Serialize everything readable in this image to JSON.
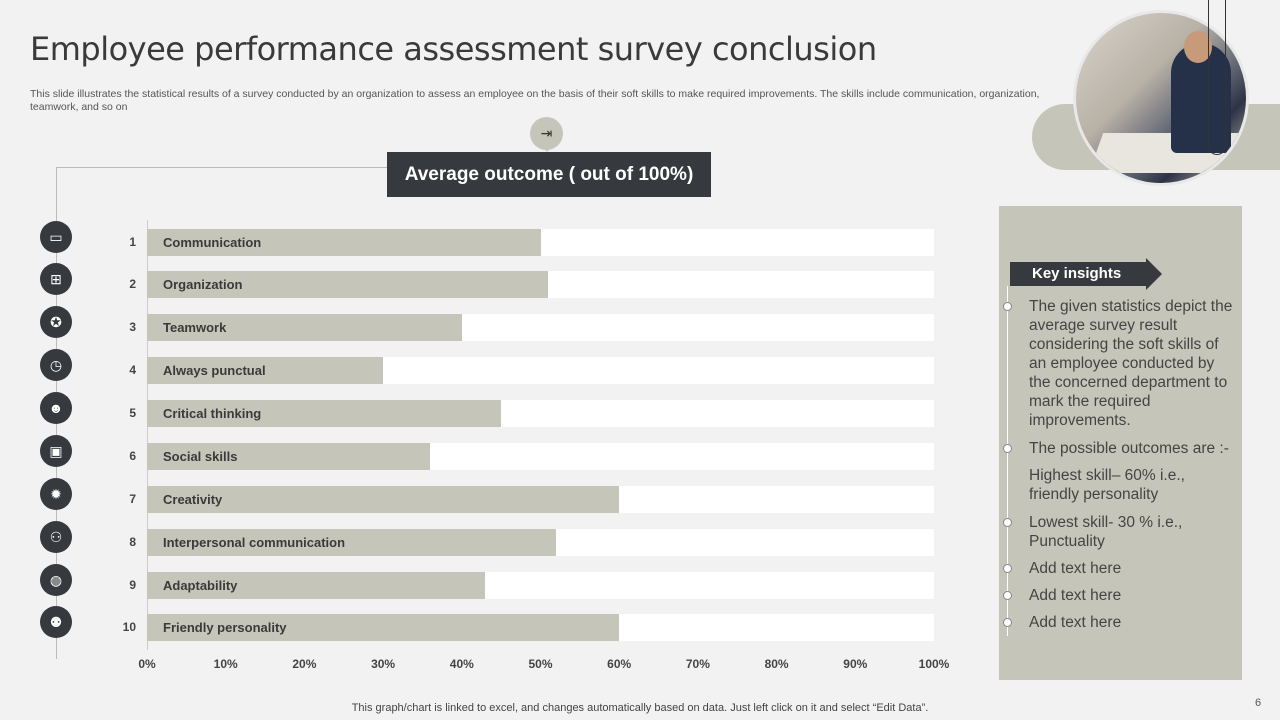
{
  "title": "Employee performance assessment survey conclusion",
  "subtitle": "This slide illustrates the statistical results of a survey conducted by an organization to assess an employee on the basis of their soft skills to make required improvements. The skills include communication, organization, teamwork, and so on",
  "chart_header": "Average outcome ( out of 100%)",
  "chart_data": {
    "type": "bar",
    "orientation": "horizontal",
    "title": "Average outcome ( out of 100%)",
    "ranks": [
      "1",
      "2",
      "3",
      "4",
      "5",
      "6",
      "7",
      "8",
      "9",
      "10"
    ],
    "categories": [
      "Communication",
      "Organization",
      "Teamwork",
      "Always punctual",
      "Critical thinking",
      "Social skills",
      "Creativity",
      "Interpersonal communication",
      "Adaptability",
      "Friendly personality"
    ],
    "values": [
      50,
      51,
      40,
      30,
      45,
      36,
      60,
      52,
      43,
      60
    ],
    "xlim": [
      0,
      100
    ],
    "tick_labels": [
      "0%",
      "10%",
      "20%",
      "30%",
      "40%",
      "50%",
      "60%",
      "70%",
      "80%",
      "90%",
      "100%"
    ],
    "bar_color": "#c6c5b9",
    "track_color": "#ffffff"
  },
  "row_icons": [
    "presentation-icon",
    "org-chart-icon",
    "team-icon",
    "stopwatch-icon",
    "brain-icon",
    "board-icon",
    "lightbulb-icon",
    "meeting-icon",
    "globe-icon",
    "people-icon"
  ],
  "insights": {
    "title": "Key insights",
    "items": [
      {
        "text": "The given statistics depict the average survey result considering the soft skills of an employee conducted by the concerned department to mark the required improvements.",
        "bullet": true
      },
      {
        "text": "The possible outcomes are :-",
        "bullet": true
      },
      {
        "text": "Highest skill– 60% i.e., friendly personality",
        "bullet": false
      },
      {
        "text": "Lowest skill- 30 % i.e., Punctuality",
        "bullet": true
      },
      {
        "text": "Add text here",
        "bullet": true
      },
      {
        "text": "Add text here",
        "bullet": true
      },
      {
        "text": "Add text here",
        "bullet": true
      }
    ]
  },
  "footer": "This graph/chart is linked to excel,  and changes automatically based on data. Just left click on it and select “Edit Data”.",
  "page_number": "6",
  "colors": {
    "accent": "#c6c5b9",
    "dark": "#36393d",
    "background": "#f2f2f2"
  }
}
